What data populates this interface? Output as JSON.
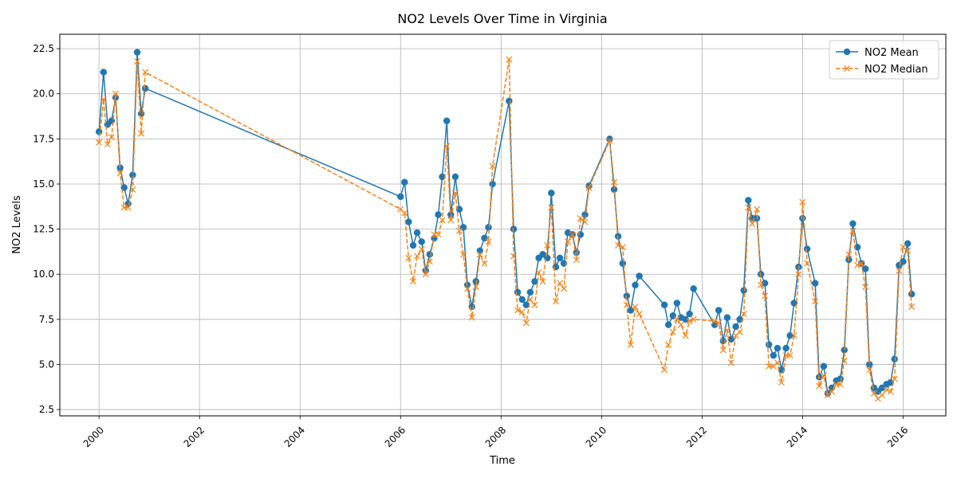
{
  "chart_data": {
    "type": "line",
    "title": "NO2 Levels Over Time in Virginia",
    "xlabel": "Time",
    "ylabel": "NO2 Levels",
    "xlim": [
      1999.22,
      2016.85
    ],
    "ylim": [
      2.15,
      23.3
    ],
    "x_ticks": [
      2000,
      2002,
      2004,
      2006,
      2008,
      2010,
      2012,
      2014,
      2016
    ],
    "x_tick_labels": [
      "2000",
      "2002",
      "2004",
      "2006",
      "2008",
      "2010",
      "2012",
      "2014",
      "2016"
    ],
    "y_ticks": [
      2.5,
      5.0,
      7.5,
      10.0,
      12.5,
      15.0,
      17.5,
      20.0,
      22.5
    ],
    "y_tick_labels": [
      "2.5",
      "5.0",
      "7.5",
      "10.0",
      "12.5",
      "15.0",
      "17.5",
      "20.0",
      "22.5"
    ],
    "grid": true,
    "legend_position": "top-right",
    "series": [
      {
        "name": "NO2 Mean",
        "color": "#1f77b4",
        "style": "solid",
        "marker": "circle",
        "points": [
          [
            2000.0,
            17.9
          ],
          [
            2000.09,
            21.2
          ],
          [
            2000.17,
            18.3
          ],
          [
            2000.25,
            18.5
          ],
          [
            2000.33,
            19.8
          ],
          [
            2000.42,
            15.9
          ],
          [
            2000.5,
            14.8
          ],
          [
            2000.58,
            13.9
          ],
          [
            2000.67,
            15.5
          ],
          [
            2000.76,
            22.3
          ],
          [
            2000.84,
            18.9
          ],
          [
            2000.92,
            20.3
          ],
          [
            2006.0,
            14.3
          ],
          [
            2006.08,
            15.1
          ],
          [
            2006.16,
            12.9
          ],
          [
            2006.25,
            11.6
          ],
          [
            2006.33,
            12.3
          ],
          [
            2006.42,
            11.8
          ],
          [
            2006.5,
            10.2
          ],
          [
            2006.58,
            11.1
          ],
          [
            2006.67,
            12.0
          ],
          [
            2006.75,
            13.3
          ],
          [
            2006.83,
            15.4
          ],
          [
            2006.92,
            18.5
          ],
          [
            2007.0,
            13.3
          ],
          [
            2007.09,
            15.4
          ],
          [
            2007.17,
            13.6
          ],
          [
            2007.25,
            12.6
          ],
          [
            2007.33,
            9.4
          ],
          [
            2007.42,
            8.2
          ],
          [
            2007.5,
            9.6
          ],
          [
            2007.58,
            11.3
          ],
          [
            2007.67,
            12.0
          ],
          [
            2007.75,
            12.6
          ],
          [
            2007.83,
            15.0
          ],
          [
            2008.16,
            19.6
          ],
          [
            2008.25,
            12.5
          ],
          [
            2008.33,
            9.0
          ],
          [
            2008.42,
            8.6
          ],
          [
            2008.5,
            8.3
          ],
          [
            2008.58,
            9.0
          ],
          [
            2008.67,
            9.6
          ],
          [
            2008.75,
            10.9
          ],
          [
            2008.83,
            11.1
          ],
          [
            2008.92,
            10.9
          ],
          [
            2009.0,
            14.5
          ],
          [
            2009.09,
            10.4
          ],
          [
            2009.17,
            10.9
          ],
          [
            2009.25,
            10.6
          ],
          [
            2009.33,
            12.3
          ],
          [
            2009.42,
            12.2
          ],
          [
            2009.5,
            11.2
          ],
          [
            2009.58,
            12.2
          ],
          [
            2009.67,
            13.3
          ],
          [
            2009.75,
            14.9
          ],
          [
            2010.16,
            17.5
          ],
          [
            2010.25,
            14.7
          ],
          [
            2010.33,
            12.1
          ],
          [
            2010.42,
            10.6
          ],
          [
            2010.5,
            8.8
          ],
          [
            2010.58,
            8.0
          ],
          [
            2010.67,
            9.4
          ],
          [
            2010.75,
            9.9
          ],
          [
            2011.25,
            8.3
          ],
          [
            2011.33,
            7.2
          ],
          [
            2011.42,
            7.7
          ],
          [
            2011.5,
            8.4
          ],
          [
            2011.58,
            7.6
          ],
          [
            2011.67,
            7.5
          ],
          [
            2011.75,
            7.8
          ],
          [
            2011.83,
            9.2
          ],
          [
            2012.25,
            7.2
          ],
          [
            2012.33,
            8.0
          ],
          [
            2012.42,
            6.3
          ],
          [
            2012.5,
            7.6
          ],
          [
            2012.58,
            6.4
          ],
          [
            2012.67,
            7.1
          ],
          [
            2012.75,
            7.5
          ],
          [
            2012.83,
            9.1
          ],
          [
            2012.92,
            14.1
          ],
          [
            2013.0,
            13.1
          ],
          [
            2013.09,
            13.1
          ],
          [
            2013.17,
            10.0
          ],
          [
            2013.25,
            9.5
          ],
          [
            2013.33,
            6.1
          ],
          [
            2013.42,
            5.5
          ],
          [
            2013.5,
            5.9
          ],
          [
            2013.58,
            4.7
          ],
          [
            2013.67,
            5.9
          ],
          [
            2013.75,
            6.6
          ],
          [
            2013.83,
            8.4
          ],
          [
            2013.92,
            10.4
          ],
          [
            2014.0,
            13.1
          ],
          [
            2014.09,
            11.4
          ],
          [
            2014.25,
            9.5
          ],
          [
            2014.33,
            4.3
          ],
          [
            2014.42,
            4.9
          ],
          [
            2014.5,
            3.4
          ],
          [
            2014.58,
            3.7
          ],
          [
            2014.67,
            4.1
          ],
          [
            2014.75,
            4.2
          ],
          [
            2014.83,
            5.8
          ],
          [
            2014.92,
            10.8
          ],
          [
            2015.0,
            12.8
          ],
          [
            2015.09,
            11.5
          ],
          [
            2015.17,
            10.6
          ],
          [
            2015.25,
            10.3
          ],
          [
            2015.33,
            5.0
          ],
          [
            2015.42,
            3.7
          ],
          [
            2015.5,
            3.5
          ],
          [
            2015.58,
            3.7
          ],
          [
            2015.67,
            3.9
          ],
          [
            2015.75,
            4.0
          ],
          [
            2015.83,
            5.3
          ],
          [
            2015.92,
            10.5
          ],
          [
            2016.0,
            10.7
          ],
          [
            2016.09,
            11.7
          ],
          [
            2016.17,
            8.9
          ]
        ]
      },
      {
        "name": "NO2 Median",
        "color": "#ff7f0e",
        "style": "dashed",
        "marker": "x",
        "points": [
          [
            2000.0,
            17.3
          ],
          [
            2000.09,
            19.7
          ],
          [
            2000.17,
            17.2
          ],
          [
            2000.25,
            17.6
          ],
          [
            2000.33,
            20.0
          ],
          [
            2000.42,
            15.6
          ],
          [
            2000.5,
            13.7
          ],
          [
            2000.58,
            13.7
          ],
          [
            2000.67,
            14.7
          ],
          [
            2000.76,
            21.8
          ],
          [
            2000.84,
            17.8
          ],
          [
            2000.92,
            21.2
          ],
          [
            2006.0,
            13.6
          ],
          [
            2006.08,
            13.4
          ],
          [
            2006.16,
            10.9
          ],
          [
            2006.25,
            9.6
          ],
          [
            2006.33,
            11.0
          ],
          [
            2006.42,
            11.4
          ],
          [
            2006.5,
            10.0
          ],
          [
            2006.58,
            10.7
          ],
          [
            2006.67,
            12.2
          ],
          [
            2006.75,
            12.2
          ],
          [
            2006.83,
            13.0
          ],
          [
            2006.92,
            17.1
          ],
          [
            2007.0,
            13.0
          ],
          [
            2007.09,
            14.5
          ],
          [
            2007.17,
            12.4
          ],
          [
            2007.25,
            11.1
          ],
          [
            2007.33,
            9.2
          ],
          [
            2007.42,
            7.6
          ],
          [
            2007.5,
            9.3
          ],
          [
            2007.58,
            11.1
          ],
          [
            2007.67,
            10.6
          ],
          [
            2007.75,
            11.8
          ],
          [
            2007.83,
            16.0
          ],
          [
            2008.16,
            21.9
          ],
          [
            2008.25,
            11.0
          ],
          [
            2008.33,
            8.0
          ],
          [
            2008.42,
            7.9
          ],
          [
            2008.5,
            7.3
          ],
          [
            2008.58,
            8.6
          ],
          [
            2008.67,
            8.3
          ],
          [
            2008.75,
            10.1
          ],
          [
            2008.83,
            9.6
          ],
          [
            2008.92,
            11.6
          ],
          [
            2009.0,
            13.7
          ],
          [
            2009.09,
            8.5
          ],
          [
            2009.17,
            9.5
          ],
          [
            2009.25,
            9.2
          ],
          [
            2009.33,
            11.8
          ],
          [
            2009.42,
            12.2
          ],
          [
            2009.5,
            10.8
          ],
          [
            2009.58,
            13.1
          ],
          [
            2009.67,
            12.9
          ],
          [
            2009.75,
            14.8
          ],
          [
            2010.16,
            17.4
          ],
          [
            2010.25,
            15.1
          ],
          [
            2010.33,
            11.6
          ],
          [
            2010.42,
            11.5
          ],
          [
            2010.5,
            8.3
          ],
          [
            2010.58,
            6.1
          ],
          [
            2010.67,
            8.2
          ],
          [
            2010.75,
            7.8
          ],
          [
            2011.25,
            4.7
          ],
          [
            2011.33,
            6.1
          ],
          [
            2011.42,
            6.8
          ],
          [
            2011.5,
            7.5
          ],
          [
            2011.58,
            7.2
          ],
          [
            2011.67,
            6.6
          ],
          [
            2011.75,
            7.4
          ],
          [
            2011.83,
            7.5
          ],
          [
            2012.25,
            7.4
          ],
          [
            2012.33,
            7.3
          ],
          [
            2012.42,
            5.8
          ],
          [
            2012.5,
            6.9
          ],
          [
            2012.58,
            5.1
          ],
          [
            2012.67,
            6.6
          ],
          [
            2012.75,
            6.8
          ],
          [
            2012.83,
            7.8
          ],
          [
            2012.92,
            13.7
          ],
          [
            2013.0,
            12.8
          ],
          [
            2013.09,
            13.6
          ],
          [
            2013.17,
            9.4
          ],
          [
            2013.25,
            8.8
          ],
          [
            2013.33,
            4.9
          ],
          [
            2013.42,
            4.9
          ],
          [
            2013.5,
            5.1
          ],
          [
            2013.58,
            4.0
          ],
          [
            2013.67,
            5.5
          ],
          [
            2013.75,
            5.5
          ],
          [
            2013.83,
            6.6
          ],
          [
            2013.92,
            10.0
          ],
          [
            2014.0,
            14.0
          ],
          [
            2014.09,
            10.6
          ],
          [
            2014.25,
            8.5
          ],
          [
            2014.33,
            3.8
          ],
          [
            2014.42,
            4.4
          ],
          [
            2014.5,
            3.3
          ],
          [
            2014.58,
            3.5
          ],
          [
            2014.67,
            3.9
          ],
          [
            2014.75,
            3.9
          ],
          [
            2014.83,
            5.2
          ],
          [
            2014.92,
            11.1
          ],
          [
            2015.0,
            12.4
          ],
          [
            2015.09,
            10.5
          ],
          [
            2015.17,
            10.6
          ],
          [
            2015.25,
            9.3
          ],
          [
            2015.33,
            4.7
          ],
          [
            2015.42,
            3.4
          ],
          [
            2015.5,
            3.1
          ],
          [
            2015.58,
            3.3
          ],
          [
            2015.67,
            3.6
          ],
          [
            2015.75,
            3.5
          ],
          [
            2015.83,
            4.2
          ],
          [
            2015.92,
            10.2
          ],
          [
            2016.0,
            11.5
          ],
          [
            2016.09,
            11.3
          ],
          [
            2016.17,
            8.2
          ]
        ]
      }
    ]
  }
}
